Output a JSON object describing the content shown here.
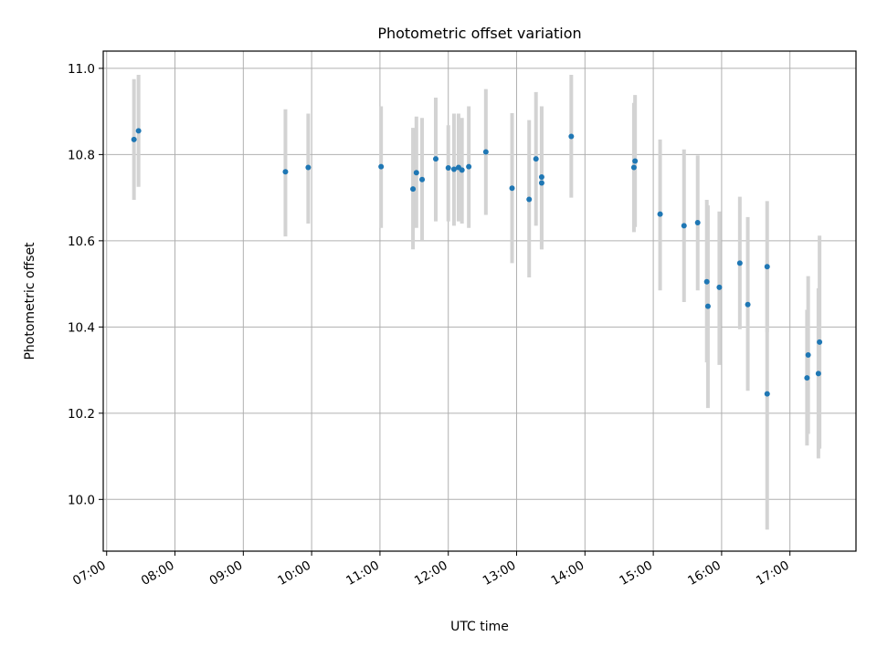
{
  "chart_data": {
    "type": "scatter",
    "title": "Photometric offset variation",
    "xlabel": "UTC time",
    "ylabel": "Photometric offset",
    "xlim": [
      "06:57",
      "17:58"
    ],
    "ylim": [
      9.88,
      11.04
    ],
    "x_ticks": [
      "07:00",
      "08:00",
      "09:00",
      "10:00",
      "11:00",
      "12:00",
      "13:00",
      "14:00",
      "15:00",
      "16:00",
      "17:00"
    ],
    "y_ticks": [
      "10.0",
      "10.2",
      "10.4",
      "10.6",
      "10.8",
      "11.0"
    ],
    "grid": true,
    "marker_color": "#1f77b4",
    "errorbar_color": "#d3d3d3",
    "points": [
      {
        "x": "07:24",
        "y": 10.835,
        "ylo": 10.695,
        "yhi": 10.975
      },
      {
        "x": "07:28",
        "y": 10.855,
        "ylo": 10.725,
        "yhi": 10.985
      },
      {
        "x": "09:37",
        "y": 10.76,
        "ylo": 10.61,
        "yhi": 10.905
      },
      {
        "x": "09:57",
        "y": 10.77,
        "ylo": 10.64,
        "yhi": 10.895
      },
      {
        "x": "11:01",
        "y": 10.772,
        "ylo": 10.63,
        "yhi": 10.912
      },
      {
        "x": "11:29",
        "y": 10.72,
        "ylo": 10.58,
        "yhi": 10.862
      },
      {
        "x": "11:32",
        "y": 10.758,
        "ylo": 10.63,
        "yhi": 10.888
      },
      {
        "x": "11:37",
        "y": 10.742,
        "ylo": 10.6,
        "yhi": 10.885
      },
      {
        "x": "11:49",
        "y": 10.79,
        "ylo": 10.645,
        "yhi": 10.932
      },
      {
        "x": "12:00",
        "y": 10.769,
        "ylo": 10.645,
        "yhi": 10.868
      },
      {
        "x": "12:05",
        "y": 10.766,
        "ylo": 10.635,
        "yhi": 10.895
      },
      {
        "x": "12:09",
        "y": 10.77,
        "ylo": 10.645,
        "yhi": 10.895
      },
      {
        "x": "12:12",
        "y": 10.764,
        "ylo": 10.64,
        "yhi": 10.885
      },
      {
        "x": "12:18",
        "y": 10.772,
        "ylo": 10.63,
        "yhi": 10.912
      },
      {
        "x": "12:33",
        "y": 10.806,
        "ylo": 10.66,
        "yhi": 10.952
      },
      {
        "x": "12:56",
        "y": 10.722,
        "ylo": 10.548,
        "yhi": 10.896
      },
      {
        "x": "13:11",
        "y": 10.696,
        "ylo": 10.515,
        "yhi": 10.88
      },
      {
        "x": "13:17",
        "y": 10.79,
        "ylo": 10.635,
        "yhi": 10.945
      },
      {
        "x": "13:22",
        "y": 10.748,
        "ylo": 10.58,
        "yhi": 10.912
      },
      {
        "x": "13:22",
        "y": 10.734,
        "ylo": 10.58,
        "yhi": 10.912
      },
      {
        "x": "13:48",
        "y": 10.842,
        "ylo": 10.7,
        "yhi": 10.985
      },
      {
        "x": "14:43",
        "y": 10.77,
        "ylo": 10.62,
        "yhi": 10.92
      },
      {
        "x": "14:44",
        "y": 10.785,
        "ylo": 10.632,
        "yhi": 10.938
      },
      {
        "x": "15:06",
        "y": 10.662,
        "ylo": 10.485,
        "yhi": 10.835
      },
      {
        "x": "15:27",
        "y": 10.635,
        "ylo": 10.458,
        "yhi": 10.812
      },
      {
        "x": "15:39",
        "y": 10.642,
        "ylo": 10.485,
        "yhi": 10.798
      },
      {
        "x": "15:47",
        "y": 10.505,
        "ylo": 10.318,
        "yhi": 10.695
      },
      {
        "x": "15:48",
        "y": 10.448,
        "ylo": 10.212,
        "yhi": 10.682
      },
      {
        "x": "15:58",
        "y": 10.492,
        "ylo": 10.312,
        "yhi": 10.668
      },
      {
        "x": "16:16",
        "y": 10.548,
        "ylo": 10.395,
        "yhi": 10.702
      },
      {
        "x": "16:23",
        "y": 10.452,
        "ylo": 10.252,
        "yhi": 10.655
      },
      {
        "x": "16:40",
        "y": 10.54,
        "ylo": 10.388,
        "yhi": 10.692
      },
      {
        "x": "16:40",
        "y": 10.245,
        "ylo": 9.93,
        "yhi": 10.555
      },
      {
        "x": "17:15",
        "y": 10.282,
        "ylo": 10.125,
        "yhi": 10.44
      },
      {
        "x": "17:16",
        "y": 10.335,
        "ylo": 10.152,
        "yhi": 10.518
      },
      {
        "x": "17:25",
        "y": 10.292,
        "ylo": 10.095,
        "yhi": 10.49
      },
      {
        "x": "17:26",
        "y": 10.365,
        "ylo": 10.118,
        "yhi": 10.612
      }
    ]
  }
}
